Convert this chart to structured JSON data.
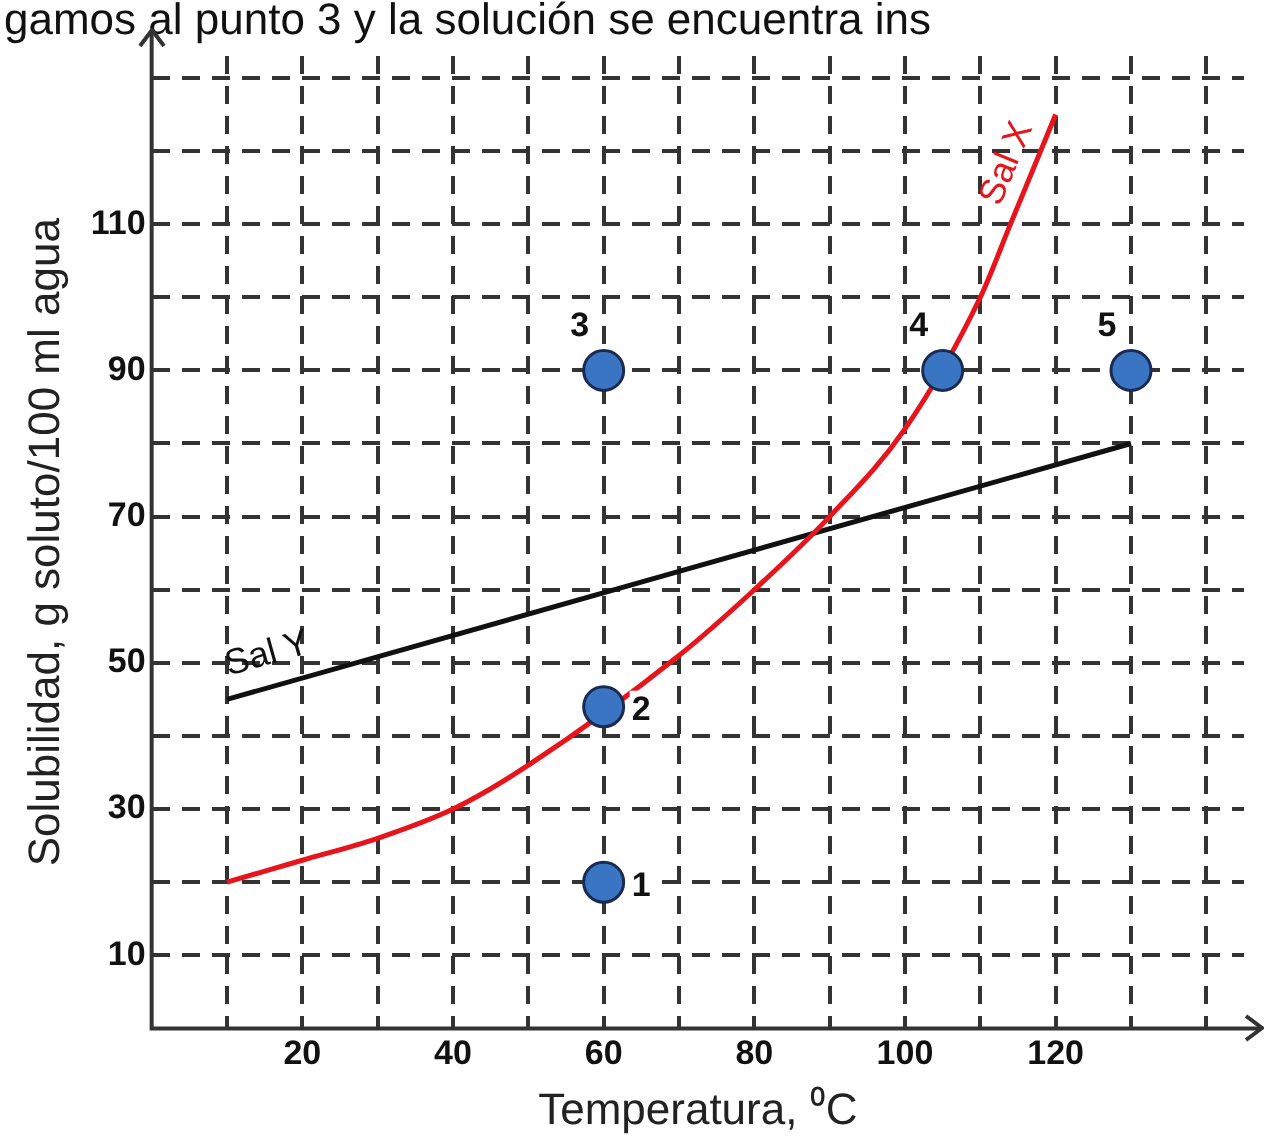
{
  "chart_data": {
    "type": "line",
    "xlabel": "Temperatura, ⁰C",
    "ylabel": "Solubilidad, g soluto/100 ml agua",
    "xlim": [
      0,
      145
    ],
    "ylim": [
      0,
      133
    ],
    "xticks": [
      {
        "value": 10,
        "label": null
      },
      20,
      {
        "value": 30,
        "label": null
      },
      40,
      {
        "value": 50,
        "label": null
      },
      60,
      {
        "value": 70,
        "label": null
      },
      80,
      {
        "value": 90,
        "label": null
      },
      100,
      {
        "value": 110,
        "label": null
      },
      120,
      {
        "value": 130,
        "label": null
      },
      {
        "value": 140,
        "label": null
      }
    ],
    "yticks": [
      10,
      {
        "value": 20,
        "label": null
      },
      30,
      {
        "value": 40,
        "label": null
      },
      50,
      {
        "value": 60,
        "label": null
      },
      70,
      {
        "value": 80,
        "label": null
      },
      90,
      {
        "value": 100,
        "label": null
      },
      110,
      {
        "value": 120,
        "label": null
      },
      {
        "value": 130,
        "label": null
      }
    ],
    "grid": true,
    "line_style": "solid",
    "series": [
      {
        "name": "Sal X",
        "color": "#e8141c",
        "marker": "none",
        "x": [
          10,
          20,
          30,
          40,
          50,
          70,
          80,
          90,
          100,
          110,
          114,
          120
        ],
        "values": [
          20,
          23,
          26,
          30,
          36,
          51,
          60,
          70,
          82,
          100,
          110,
          125
        ]
      },
      {
        "name": "Sal Y",
        "color": "#111111",
        "marker": "none",
        "x": [
          10,
          130
        ],
        "values": [
          45,
          80
        ]
      },
      {
        "type": "scatter",
        "color": "#3a75c4",
        "marker": "circle",
        "x": [
          60,
          60,
          60,
          105,
          130
        ],
        "values": [
          20,
          44,
          90,
          90,
          90
        ]
      }
    ],
    "annotations": [
      "gamos al punto 3 y la solución se encuentra ins",
      {
        "text": "1",
        "x": 60,
        "y": 20
      },
      {
        "text": "2",
        "x": 60,
        "y": 44
      },
      {
        "text": "3",
        "x": 60,
        "y": 90
      },
      {
        "text": "4",
        "x": 105,
        "y": 90
      },
      {
        "text": "5",
        "x": 130,
        "y": 90
      }
    ]
  }
}
